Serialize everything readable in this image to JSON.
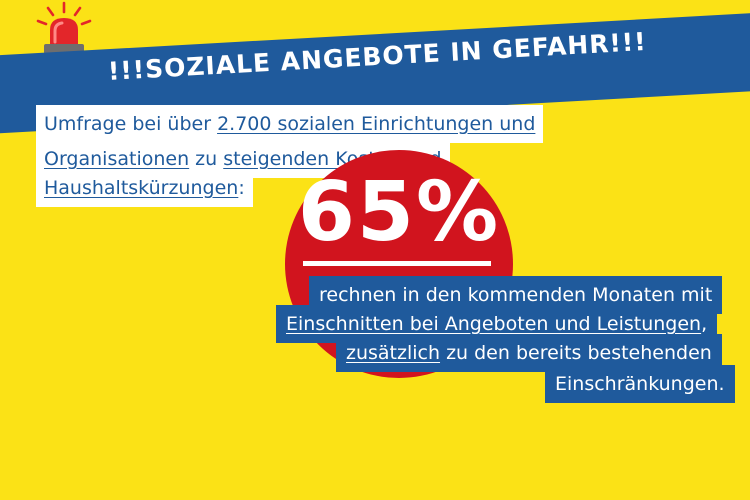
{
  "headline": "!!!SOZIALE ANGEBOTE IN GEFAHR!!!",
  "intro": {
    "line1_prefix": "Umfrage bei über ",
    "line1_link": "2.700 sozialen Einrichtungen und",
    "line2_link1": "Organisationen",
    "line2_mid": " zu ",
    "line2_link2": "steigenden Kosten",
    "line2_suffix": " und",
    "line3_link": "Haushaltskürzungen",
    "line3_suffix": ":"
  },
  "stat": {
    "value": "65%",
    "line1": "rechnen in den kommenden Monaten mit",
    "line2_link": "Einschnitten bei Angeboten und Leistungen",
    "line2_suffix": ",",
    "line3_link": "zusätzlich",
    "line3_suffix": " zu den bereits bestehenden",
    "line4": "Einschränkungen."
  },
  "colors": {
    "background": "#fbe216",
    "banner": "#1f5a9c",
    "circle": "#d1141e",
    "text_blue": "#1f5a9c"
  },
  "icons": {
    "siren": "siren-icon"
  }
}
